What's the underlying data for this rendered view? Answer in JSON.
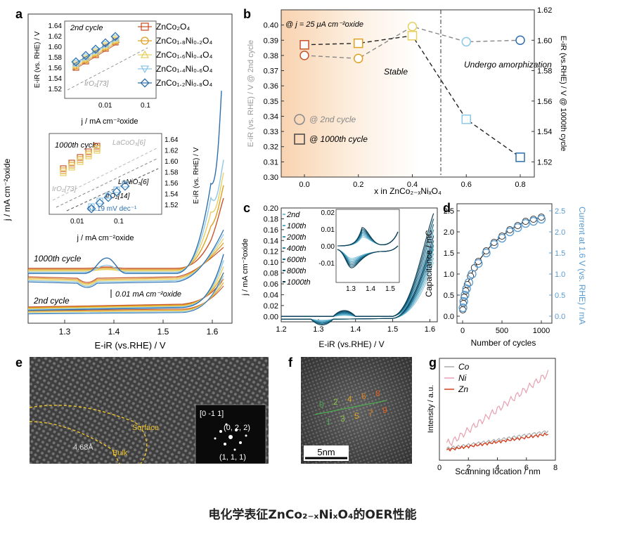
{
  "panel_letters": [
    "a",
    "b",
    "c",
    "d",
    "e",
    "f",
    "g"
  ],
  "caption": "电化学表征ZnCo₂₋ₓNiₓO₄的OER性能",
  "panel_a": {
    "xlabel": "E-iR (vs.RHE) / V",
    "ylabel": "j / mA cm⁻²oxide",
    "xticks": [
      "1.3",
      "1.4",
      "1.5",
      "1.6"
    ],
    "label_1000": "1000th cycle",
    "label_2nd": "2nd cycle",
    "scale_bar": "0.01 mA cm⁻²oxide",
    "inset_top": {
      "title": "2nd cycle",
      "ylabel": "E-iR (vs. RHE) / V",
      "xlabel": "j / mA cm⁻²oxide",
      "yticks": [
        "1.64",
        "1.62",
        "1.60",
        "1.58",
        "1.56",
        "1.54",
        "1.52"
      ],
      "xticks": [
        "0.01",
        "0.1"
      ],
      "ref": "IrO₂[73]"
    },
    "inset_bottom": {
      "title": "1000th cycle",
      "ylabel": "E-iR (vs. RHE) / V",
      "xlabel": "j / mA cm⁻²oxide",
      "yticks": [
        "1.64",
        "1.62",
        "1.60",
        "1.58",
        "1.56",
        "1.54",
        "1.52"
      ],
      "xticks": [
        "0.01",
        "0.1"
      ],
      "refs": [
        "LaCoO₃[6]",
        "IrO₂[73]",
        "LaNiO₃[6]",
        "IrO₂[14]"
      ],
      "tafel": "61.19 mV dec⁻¹"
    },
    "legend": [
      {
        "name": "ZnCo₂O₄",
        "color": "#c8552a"
      },
      {
        "name": "ZnCo₁.₈Ni₀.₂O₄",
        "color": "#e0a020"
      },
      {
        "name": "ZnCo₁.₆Ni₀.₄O₄",
        "color": "#e8d060"
      },
      {
        "name": "ZnCo₁.₄Ni₀.₆O₄",
        "color": "#8ec8e8"
      },
      {
        "name": "ZnCo₁.₂Ni₀.₈O₄",
        "color": "#2e6fae"
      }
    ]
  },
  "chart_data": [
    {
      "type": "scatter",
      "panel": "b",
      "annotation": "@ j = 25 μA cm⁻²oxide",
      "xlabel": "x in ZnCo₂₋ₓNiₓO₄",
      "ylabel_left": "E-iR (vs. RHE) / V @ 2nd cycle",
      "ylabel_right": "E-iR (vs.RHE) / V @ 1000th cycle",
      "ylim_left": [
        0.3,
        0.41
      ],
      "ylim_right": [
        1.51,
        1.62
      ],
      "x_ticks": [
        "0.0",
        "0.2",
        "0.4",
        "0.6",
        "0.8"
      ],
      "y_left_ticks": [
        "0.30",
        "0.31",
        "0.32",
        "0.33",
        "0.34",
        "0.35",
        "0.36",
        "0.37",
        "0.38",
        "0.39",
        "0.40"
      ],
      "y_right_ticks": [
        "1.52",
        "1.54",
        "1.56",
        "1.58",
        "1.60",
        "1.62"
      ],
      "regions": [
        "Stable",
        "Undergo amorphization"
      ],
      "legend": [
        "@ 2nd cycle",
        "@ 1000th cycle"
      ],
      "series": [
        {
          "name": "@ 2nd cycle",
          "x": [
            0.0,
            0.2,
            0.4,
            0.6,
            0.8
          ],
          "values": [
            0.38,
            0.378,
            0.399,
            0.389,
            0.39
          ]
        },
        {
          "name": "@ 1000th cycle",
          "x": [
            0.0,
            0.2,
            0.4,
            0.6,
            0.8
          ],
          "values": [
            1.597,
            1.598,
            1.603,
            1.548,
            1.523
          ]
        }
      ]
    },
    {
      "type": "line",
      "panel": "c",
      "xlabel": "E-iR (vs.RHE) / V",
      "ylabel": "j / mA cm⁻²oxide",
      "xlim": [
        1.2,
        1.62
      ],
      "ylim": [
        -0.01,
        0.2
      ],
      "x_ticks": [
        "1.2",
        "1.3",
        "1.4",
        "1.5",
        "1.6"
      ],
      "y_ticks": [
        "0.00",
        "0.02",
        "0.04",
        "0.06",
        "0.08",
        "0.10",
        "0.12",
        "0.14",
        "0.16",
        "0.18",
        "0.20"
      ],
      "legend": [
        "2nd",
        "100th",
        "200th",
        "400th",
        "600th",
        "800th",
        "1000th"
      ],
      "inset": {
        "x_ticks": [
          "1.3",
          "1.4",
          "1.5"
        ],
        "y_ticks": [
          "0.02",
          "0.01",
          "0.00",
          "-0.01"
        ]
      }
    },
    {
      "type": "scatter",
      "panel": "d",
      "xlabel": "Number of cycles",
      "ylabel_left": "Capacitance / mC",
      "ylabel_right": "Current at 1.6 V (vs. RHE) / mA",
      "xlim": [
        0,
        1000
      ],
      "ylim_left": [
        0,
        2.5
      ],
      "ylim_right": [
        0,
        2.5
      ],
      "x_ticks": [
        "0",
        "500",
        "1000"
      ],
      "y_left_ticks": [
        "0.0",
        "0.5",
        "1.0",
        "1.5",
        "2.0",
        "2.5"
      ],
      "y_right_ticks": [
        "0.0",
        "0.5",
        "1.0",
        "1.5",
        "2.0",
        "2.5"
      ],
      "series": [
        {
          "name": "Capacitance",
          "x": [
            2,
            10,
            20,
            40,
            60,
            100,
            150,
            200,
            300,
            400,
            500,
            600,
            700,
            800,
            900,
            1000
          ],
          "values": [
            0.15,
            0.3,
            0.45,
            0.6,
            0.75,
            0.95,
            1.15,
            1.3,
            1.55,
            1.75,
            1.9,
            2.05,
            2.15,
            2.25,
            2.3,
            2.35
          ]
        },
        {
          "name": "Current at 1.6 V",
          "x": [
            5,
            15,
            30,
            50,
            80,
            120,
            200,
            300,
            400,
            500,
            600,
            700,
            800,
            900,
            1000
          ],
          "values": [
            0.2,
            0.35,
            0.5,
            0.65,
            0.8,
            1.0,
            1.25,
            1.5,
            1.7,
            1.85,
            2.0,
            2.1,
            2.2,
            2.25,
            2.3
          ]
        }
      ]
    },
    {
      "type": "line",
      "panel": "g",
      "xlabel": "Scanning location / nm",
      "ylabel": "Intensity / a.u.",
      "xlim": [
        0,
        8
      ],
      "x_ticks": [
        "0",
        "2",
        "4",
        "6",
        "8"
      ],
      "legend": [
        {
          "name": "Co",
          "color": "#aaaaaa"
        },
        {
          "name": "Ni",
          "color": "#e8a0b0"
        },
        {
          "name": "Zn",
          "color": "#d04020"
        }
      ]
    }
  ],
  "panel_e": {
    "zone": "[0 -1 1]",
    "spot1": "(0, 2, 2)",
    "spot2": "(1, 1, 1)",
    "d_spacing": "4.68Å",
    "surface": "Surface",
    "bulk": "Bulk"
  },
  "panel_f": {
    "scale": "5nm",
    "top_digits": [
      "0",
      "2",
      "4",
      "6",
      "8"
    ],
    "bottom_digits": [
      "1",
      "3",
      "5",
      "7",
      "9"
    ]
  }
}
